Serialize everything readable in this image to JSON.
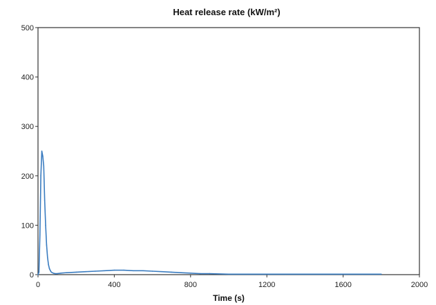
{
  "chart_data": {
    "type": "line",
    "title": "Heat release rate (kW/m²)",
    "xlabel": "Time (s)",
    "ylabel": "",
    "xlim": [
      0,
      2000
    ],
    "ylim": [
      0,
      500
    ],
    "x_ticks": [
      0,
      400,
      800,
      1200,
      1600,
      2000
    ],
    "y_ticks": [
      0,
      100,
      200,
      300,
      400,
      500
    ],
    "x_tick_labels": [
      "0",
      "400",
      "800",
      "1200",
      "1600",
      "2000"
    ],
    "y_tick_labels": [
      "0",
      "100",
      "200",
      "300",
      "400",
      "500"
    ],
    "grid": false,
    "legend": "none",
    "series": [
      {
        "color": "#3a7cc0",
        "x": [
          0,
          5,
          10,
          15,
          20,
          25,
          30,
          35,
          40,
          45,
          50,
          55,
          60,
          65,
          70,
          80,
          90,
          100,
          120,
          150,
          200,
          250,
          300,
          350,
          400,
          450,
          500,
          550,
          600,
          650,
          700,
          750,
          800,
          850,
          900,
          1000,
          1100,
          1200,
          1300,
          1400,
          1500,
          1600,
          1700,
          1800
        ],
        "values": [
          0,
          5,
          80,
          200,
          250,
          240,
          220,
          150,
          100,
          60,
          35,
          20,
          12,
          8,
          5,
          3,
          2,
          2,
          3,
          4,
          5,
          6,
          7,
          8,
          9,
          9,
          8,
          8,
          7,
          6,
          5,
          4,
          3,
          2,
          2,
          1,
          1,
          1,
          1,
          1,
          1,
          1,
          1,
          1
        ]
      }
    ]
  }
}
